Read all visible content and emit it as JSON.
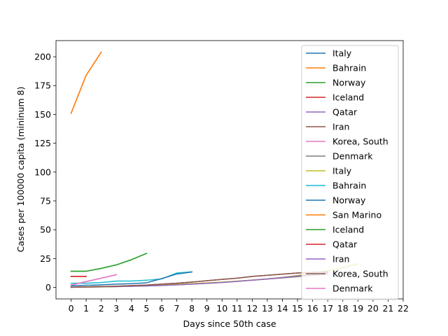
{
  "chart_data": {
    "type": "line",
    "xlabel": "Days since 50th case",
    "ylabel": "Cases per 100000 capita (mininum 8)",
    "xlim": [
      -1,
      22
    ],
    "ylim": [
      -10,
      214
    ],
    "xticks": [
      0,
      1,
      2,
      3,
      4,
      5,
      6,
      7,
      8,
      9,
      10,
      11,
      12,
      13,
      14,
      15,
      16,
      17,
      18,
      19,
      20,
      21,
      22
    ],
    "yticks": [
      0,
      25,
      50,
      75,
      100,
      125,
      150,
      175,
      200
    ],
    "legend_position": "right",
    "series": [
      {
        "name": "Italy",
        "color": "#1f77b4",
        "x": [
          0,
          1,
          2,
          3,
          4,
          5,
          6,
          7,
          8
        ],
        "y": [
          0.1,
          0.3,
          0.5,
          0.8,
          1.2,
          1.8,
          2.6,
          3.5,
          4.6
        ]
      },
      {
        "name": "Bahrain",
        "color": "#ff7f0e",
        "x": [
          0,
          1,
          2
        ],
        "y": [
          151,
          184,
          204
        ]
      },
      {
        "name": "Norway",
        "color": "#2ca02c",
        "x": [
          0,
          1,
          2,
          3,
          4,
          5
        ],
        "y": [
          14,
          14,
          16.5,
          19.5,
          24,
          29.5
        ]
      },
      {
        "name": "Iceland",
        "color": "#d62728",
        "x": [
          0,
          1
        ],
        "y": [
          9.5,
          9.5
        ]
      },
      {
        "name": "Qatar",
        "color": "#9467bd",
        "x": [
          0,
          1,
          2,
          3,
          4,
          5,
          6,
          7,
          8,
          9,
          10,
          11,
          12,
          13,
          14,
          15,
          16,
          17
        ],
        "y": [
          0.2,
          0.4,
          0.6,
          0.8,
          1.0,
          1.3,
          1.7,
          2.2,
          2.8,
          3.5,
          4.3,
          5.2,
          6.2,
          7.3,
          8.5,
          9.8,
          11.2,
          12.7
        ]
      },
      {
        "name": "Iran",
        "color": "#8c564b",
        "x": [
          0,
          1,
          2,
          3,
          4,
          5,
          6,
          7,
          8,
          9,
          10,
          11,
          12,
          13,
          14,
          15,
          16,
          17
        ],
        "y": [
          0.1,
          0.4,
          0.7,
          1.0,
          1.5,
          2.0,
          2.8,
          3.6,
          4.6,
          5.8,
          6.9,
          8.0,
          9.5,
          10.5,
          11.5,
          12.5,
          13.0,
          13.5
        ]
      },
      {
        "name": "Korea, South",
        "color": "#e377c2",
        "x": [
          0,
          1,
          2,
          3
        ],
        "y": [
          2,
          5,
          8,
          11
        ]
      },
      {
        "name": "Denmark",
        "color": "#7f7f7f",
        "x": [
          0,
          1,
          2,
          3,
          4,
          5,
          6,
          7,
          8,
          9,
          10,
          11,
          12,
          13,
          14,
          15,
          16,
          17
        ],
        "y": [
          0.1,
          0.2,
          0.4,
          0.6,
          0.9,
          1.2,
          1.7,
          2.3,
          2.9,
          3.6,
          4.4,
          5.3,
          6.2,
          7.2,
          8.2,
          9.3,
          10.4,
          11.5
        ]
      },
      {
        "name": "Italy",
        "color": "#bcbd22",
        "x": [
          0,
          1,
          2,
          3,
          4,
          5,
          6,
          7,
          8,
          9,
          10,
          11,
          12,
          13,
          14,
          15,
          16,
          17,
          18,
          19
        ],
        "y": [
          0.1,
          0.3,
          0.5,
          0.8,
          1.1,
          1.5,
          2.0,
          2.6,
          3.2,
          3.9,
          4.6,
          5.4,
          6.3,
          7.4,
          8.7,
          10.3,
          12.1,
          14.3,
          17.0,
          20.5
        ]
      },
      {
        "name": "Bahrain",
        "color": "#17becf",
        "x": [
          0,
          1,
          2,
          3,
          4,
          5,
          6,
          7,
          8
        ],
        "y": [
          3.6,
          3.6,
          4.2,
          5.5,
          5.5,
          6.2,
          7.3,
          12.5,
          13.5
        ]
      },
      {
        "name": "Norway",
        "color": "#1f77b4",
        "x": [
          0,
          1,
          2,
          3,
          4,
          5,
          6,
          7,
          8
        ],
        "y": [
          1.3,
          1.8,
          2.2,
          2.8,
          3.2,
          4.0,
          7.6,
          11.6,
          13.3
        ]
      },
      {
        "name": "San Marino",
        "color": "#ff7f0e",
        "x": [
          0,
          1,
          2
        ],
        "y": [
          151,
          184,
          204
        ]
      },
      {
        "name": "Iceland",
        "color": "#2ca02c",
        "x": [
          0,
          1,
          2,
          3,
          4,
          5
        ],
        "y": [
          14,
          14,
          16.5,
          19.5,
          24,
          29.5
        ]
      },
      {
        "name": "Qatar",
        "color": "#d62728",
        "x": [
          0,
          1
        ],
        "y": [
          9.5,
          9.5
        ]
      },
      {
        "name": "Iran",
        "color": "#9467bd",
        "x": [
          0,
          1,
          2,
          3,
          4,
          5,
          6,
          7,
          8,
          9,
          10,
          11,
          12,
          13,
          14,
          15,
          16,
          17
        ],
        "y": [
          0.2,
          0.4,
          0.6,
          0.8,
          1.0,
          1.3,
          1.7,
          2.2,
          2.8,
          3.5,
          4.3,
          5.2,
          6.2,
          7.3,
          8.5,
          9.8,
          11.2,
          12.7
        ]
      },
      {
        "name": "Korea, South",
        "color": "#8c564b",
        "x": [
          0,
          1,
          2,
          3,
          4,
          5,
          6,
          7,
          8,
          9,
          10,
          11,
          12,
          13,
          14,
          15,
          16,
          17
        ],
        "y": [
          0.1,
          0.4,
          0.7,
          1.0,
          1.5,
          2.0,
          2.8,
          3.6,
          4.6,
          5.8,
          6.9,
          8.0,
          9.5,
          10.5,
          11.5,
          12.5,
          13.0,
          13.5
        ]
      },
      {
        "name": "Denmark",
        "color": "#e377c2",
        "x": [
          0,
          1,
          2,
          3
        ],
        "y": [
          2,
          5,
          8,
          11
        ]
      }
    ]
  }
}
